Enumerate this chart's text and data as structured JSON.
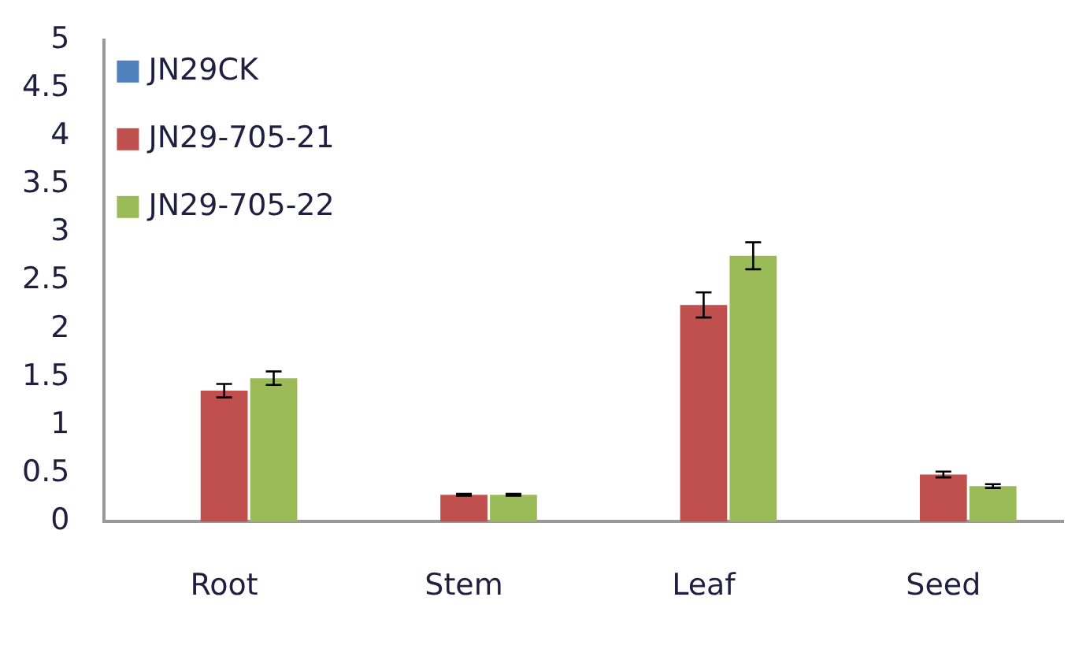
{
  "chart_data": {
    "type": "bar",
    "categories": [
      "Root",
      "Stem",
      "Leaf",
      "Seed"
    ],
    "series": [
      {
        "name": "JN29CK",
        "color": "#4f81bd",
        "values": [
          null,
          null,
          null,
          null
        ]
      },
      {
        "name": "JN29-705-21",
        "color": "#c0504d",
        "values": [
          1.36,
          0.28,
          2.25,
          0.49
        ],
        "errors": [
          0.07,
          0.01,
          0.13,
          0.03
        ]
      },
      {
        "name": "JN29-705-22",
        "color": "#9bbb59",
        "values": [
          1.49,
          0.28,
          2.76,
          0.37
        ],
        "errors": [
          0.07,
          0.01,
          0.14,
          0.02
        ]
      }
    ],
    "ylim": [
      0,
      5
    ],
    "yticks": [
      0,
      0.5,
      1,
      1.5,
      2,
      2.5,
      3,
      3.5,
      4,
      4.5,
      5
    ],
    "grid": false,
    "legend": "top left"
  }
}
